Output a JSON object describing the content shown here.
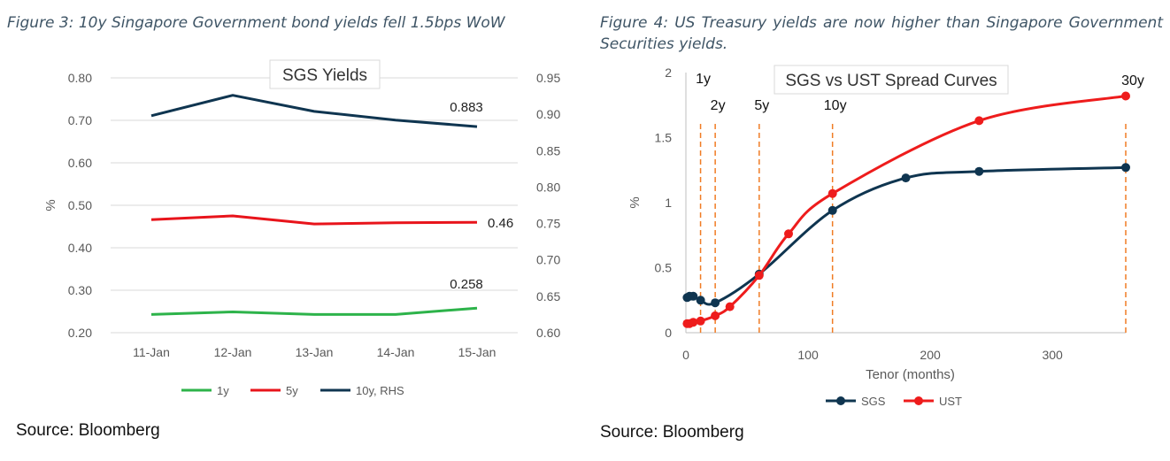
{
  "figure3": {
    "caption": "Figure 3: 10y Singapore Government bond yields fell 1.5bps WoW",
    "source": "Source: Bloomberg"
  },
  "figure4": {
    "caption": "Figure 4: US Treasury yields are now higher than Singapore Government Securities yields.",
    "source": "Source: Bloomberg"
  },
  "chart_data": [
    {
      "type": "line",
      "title": "SGS Yields",
      "ylabel": "%",
      "categories": [
        "11-Jan",
        "12-Jan",
        "13-Jan",
        "14-Jan",
        "15-Jan"
      ],
      "ylim": [
        0.2,
        0.8
      ],
      "yticks": [
        "0.20",
        "0.30",
        "0.40",
        "0.50",
        "0.60",
        "0.70",
        "0.80"
      ],
      "y2lim": [
        0.6,
        0.95
      ],
      "y2ticks": [
        "0.60",
        "0.65",
        "0.70",
        "0.75",
        "0.80",
        "0.85",
        "0.90",
        "0.95"
      ],
      "grid": true,
      "legend_position": "bottom",
      "series": [
        {
          "name": "1y",
          "axis": "left",
          "color": "#2db34a",
          "values": [
            0.243,
            0.249,
            0.243,
            0.243,
            0.258
          ],
          "end_label": "0.258"
        },
        {
          "name": "5y",
          "axis": "left",
          "color": "#e8141b",
          "values": [
            0.466,
            0.475,
            0.456,
            0.459,
            0.46
          ],
          "end_label": "0.46"
        },
        {
          "name": "10y, RHS",
          "axis": "right",
          "color": "#0f3550",
          "values": [
            0.898,
            0.926,
            0.904,
            0.892,
            0.883
          ],
          "end_label": "0.883"
        }
      ]
    },
    {
      "type": "line",
      "title": "SGS vs UST Spread Curves",
      "xlabel": "Tenor (months)",
      "ylabel": "%",
      "xlim": [
        0,
        360
      ],
      "xticks": [
        "0",
        "100",
        "200",
        "300"
      ],
      "ylim": [
        0,
        2
      ],
      "yticks": [
        "0",
        "0.5",
        "1",
        "1.5",
        "2"
      ],
      "grid": false,
      "legend_position": "bottom",
      "tenor_markers": [
        {
          "label": "1y",
          "x": 12
        },
        {
          "label": "2y",
          "x": 24
        },
        {
          "label": "5y",
          "x": 60
        },
        {
          "label": "10y",
          "x": 120
        },
        {
          "label": "30y",
          "x": 360
        }
      ],
      "series": [
        {
          "name": "SGS",
          "color": "#0f3550",
          "x": [
            1,
            3,
            6,
            12,
            24,
            60,
            120,
            180,
            240,
            360
          ],
          "y": [
            0.27,
            0.28,
            0.28,
            0.25,
            0.23,
            0.45,
            0.94,
            1.19,
            1.24,
            1.27
          ]
        },
        {
          "name": "UST",
          "color": "#ee1c1c",
          "x": [
            1,
            3,
            6,
            12,
            24,
            36,
            60,
            84,
            120,
            240,
            360
          ],
          "y": [
            0.07,
            0.07,
            0.08,
            0.09,
            0.13,
            0.2,
            0.44,
            0.76,
            1.07,
            1.63,
            1.82
          ]
        }
      ]
    }
  ]
}
